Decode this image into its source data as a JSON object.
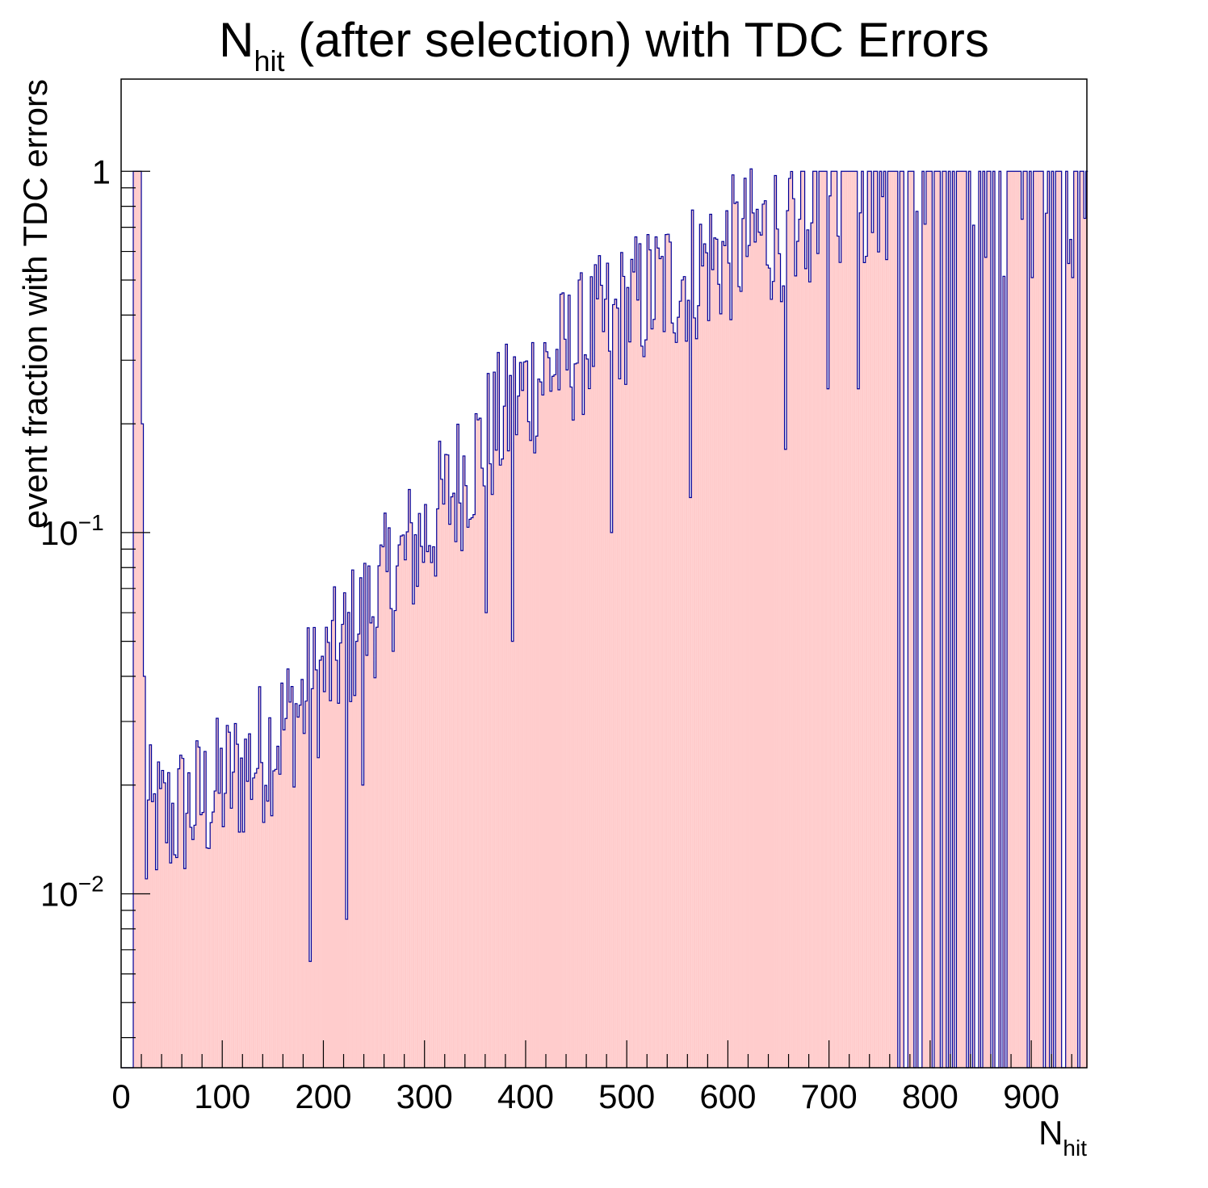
{
  "chart_data": {
    "type": "bar",
    "title": "N",
    "title_sub": "hit",
    "title_rest": " (after selection) with TDC Errors",
    "xlabel": "N",
    "xlabel_sub": "hit",
    "ylabel": "event fraction with TDC errors",
    "xlim": [
      0,
      955
    ],
    "ylim": [
      0.0033,
      1.8
    ],
    "yscale": "log",
    "bin_width": 2,
    "x_ticks": [
      "0",
      "100",
      "200",
      "300",
      "400",
      "500",
      "600",
      "700",
      "800",
      "900"
    ],
    "y_ticks": [
      {
        "base": "1",
        "exp": ""
      },
      {
        "base": "10",
        "exp": "−1"
      },
      {
        "base": "10",
        "exp": "−2"
      }
    ],
    "fill_color": "#ffcccc",
    "line_color": "#000099",
    "grid": false,
    "legend": "none",
    "series": [
      {
        "x_anchors": [
          14,
          17,
          19,
          22,
          25,
          40,
          60,
          80,
          100,
          120,
          140,
          160,
          180,
          200,
          220,
          240,
          260,
          280,
          300,
          320,
          340,
          360,
          380,
          400,
          420,
          440,
          460,
          480,
          500,
          520,
          540,
          560,
          580,
          600,
          620,
          640,
          660,
          680,
          700,
          720,
          740,
          760
        ],
        "y_anchors": [
          1.0,
          0.5,
          0.2,
          0.015,
          0.016,
          0.016,
          0.017,
          0.018,
          0.02,
          0.022,
          0.025,
          0.029,
          0.034,
          0.04,
          0.048,
          0.058,
          0.07,
          0.085,
          0.1,
          0.12,
          0.15,
          0.18,
          0.21,
          0.25,
          0.28,
          0.31,
          0.34,
          0.38,
          0.41,
          0.45,
          0.49,
          0.52,
          0.56,
          0.6,
          0.64,
          0.68,
          0.72,
          0.76,
          0.8,
          0.84,
          0.88,
          0.9
        ],
        "dips": [
          {
            "x": 24,
            "y": 0.011
          },
          {
            "x": 30,
            "y": 0.018
          },
          {
            "x": 186,
            "y": 0.0065
          },
          {
            "x": 222,
            "y": 0.0085
          },
          {
            "x": 232,
            "y": 0.05
          },
          {
            "x": 238,
            "y": 0.02
          },
          {
            "x": 360,
            "y": 0.06
          },
          {
            "x": 386,
            "y": 0.05
          },
          {
            "x": 484,
            "y": 0.1
          },
          {
            "x": 562,
            "y": 0.125
          },
          {
            "x": 656,
            "y": 0.17
          },
          {
            "x": 698,
            "y": 0.25
          },
          {
            "x": 728,
            "y": 0.25
          }
        ],
        "empty_from": 766
      }
    ]
  }
}
